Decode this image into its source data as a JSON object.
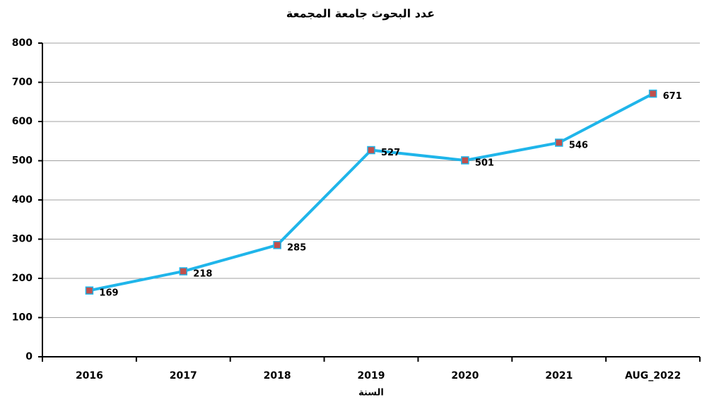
{
  "chart_data": {
    "type": "line",
    "title": "عدد البحوث جامعة المجمعة",
    "x_label": "السنة",
    "categories": [
      "2016",
      "2017",
      "2018",
      "2019",
      "2020",
      "2021",
      "AUG_2022"
    ],
    "series": [
      {
        "name": "عدد البحوث",
        "color": "#1fb5ea",
        "marker_color": "#c0504d",
        "values": [
          169,
          218,
          285,
          527,
          501,
          546,
          671
        ]
      }
    ],
    "ylim": [
      0,
      800
    ],
    "yticks": [
      0,
      100,
      200,
      300,
      400,
      500,
      600,
      700,
      800
    ],
    "grid": true
  }
}
